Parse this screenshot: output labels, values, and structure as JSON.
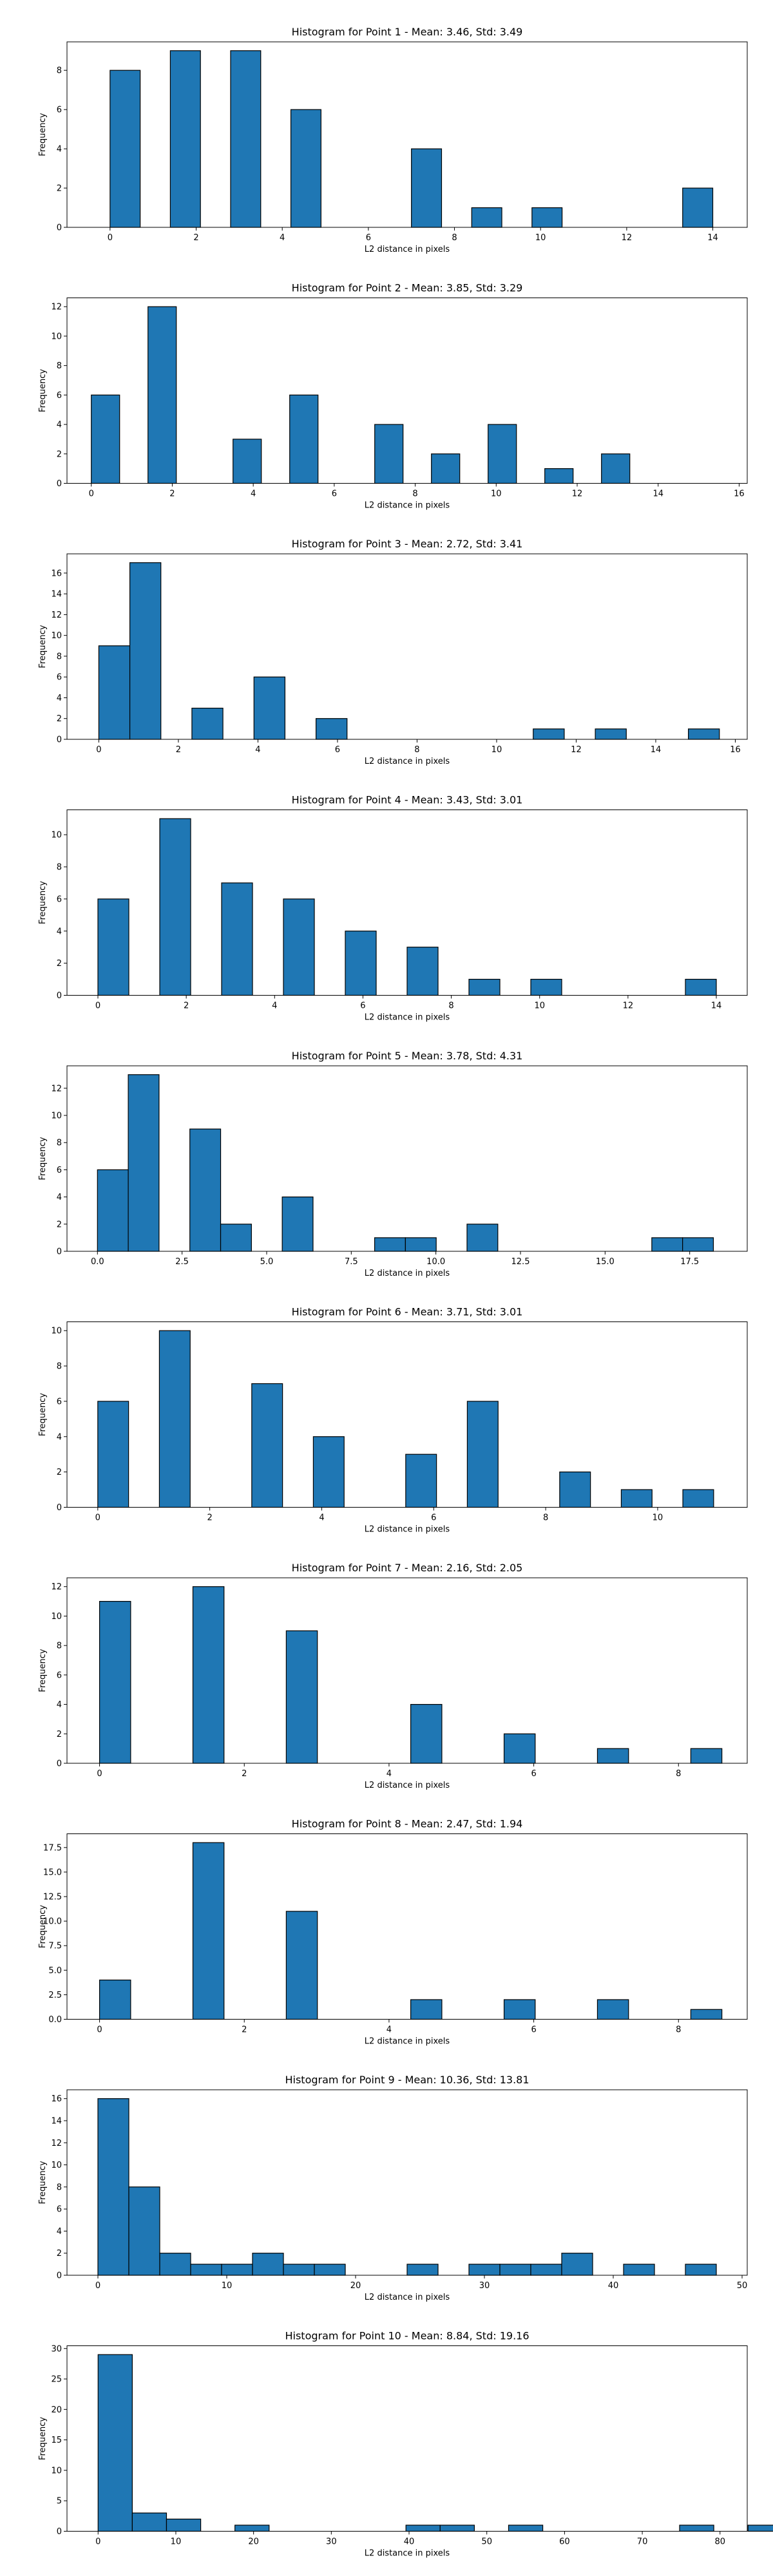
{
  "colors": {
    "bar_fill": "#1f77b4",
    "bar_edge": "#000000",
    "axes": "#000000",
    "background": "#ffffff"
  },
  "chart_data": [
    {
      "type": "bar",
      "title": "Histogram for Point 1 - Mean: 3.46, Std: 3.49",
      "xlabel": "L2 distance in pixels",
      "ylabel": "Frequency",
      "xlim": [
        -1.0,
        14.8
      ],
      "ylim": [
        0,
        9.45
      ],
      "xticks": [
        0,
        2,
        4,
        6,
        8,
        10,
        12,
        14
      ],
      "xtick_labels": [
        "0",
        "2",
        "4",
        "6",
        "8",
        "10",
        "12",
        "14"
      ],
      "yticks": [
        0,
        2,
        4,
        6,
        8
      ],
      "ytick_labels": [
        "0",
        "2",
        "4",
        "6",
        "8"
      ],
      "grid": false,
      "bins": [
        [
          0.0,
          0.7,
          8
        ],
        [
          1.4,
          2.1,
          9
        ],
        [
          2.8,
          3.5,
          9
        ],
        [
          4.2,
          4.9,
          6
        ],
        [
          7.0,
          7.7,
          4
        ],
        [
          8.4,
          9.1,
          1
        ],
        [
          9.8,
          10.5,
          1
        ],
        [
          13.3,
          14.0,
          2
        ]
      ]
    },
    {
      "type": "bar",
      "title": "Histogram for Point 2 - Mean: 3.85, Std: 3.29",
      "xlabel": "L2 distance in pixels",
      "ylabel": "Frequency",
      "xlim": [
        -0.6,
        16.2
      ],
      "ylim": [
        0,
        12.6
      ],
      "xticks": [
        0,
        2,
        4,
        6,
        8,
        10,
        12,
        14,
        16
      ],
      "xtick_labels": [
        "0",
        "2",
        "4",
        "6",
        "8",
        "10",
        "12",
        "14",
        "16"
      ],
      "yticks": [
        0,
        2,
        4,
        6,
        8,
        10,
        12
      ],
      "ytick_labels": [
        "0",
        "2",
        "4",
        "6",
        "8",
        "10",
        "12"
      ],
      "grid": false,
      "bins": [
        [
          0.0,
          0.7,
          6
        ],
        [
          1.4,
          2.1,
          12
        ],
        [
          3.5,
          4.2,
          3
        ],
        [
          4.9,
          5.6,
          6
        ],
        [
          7.0,
          7.7,
          4
        ],
        [
          8.4,
          9.1,
          2
        ],
        [
          9.8,
          10.5,
          4
        ],
        [
          11.2,
          11.9,
          1
        ],
        [
          12.6,
          13.3,
          2
        ]
      ]
    },
    {
      "type": "bar",
      "title": "Histogram for Point 3 - Mean: 2.72, Std: 3.41",
      "xlabel": "L2 distance in pixels",
      "ylabel": "Frequency",
      "xlim": [
        -0.8,
        16.3
      ],
      "ylim": [
        0,
        17.85
      ],
      "xticks": [
        0,
        2,
        4,
        6,
        8,
        10,
        12,
        14,
        16
      ],
      "xtick_labels": [
        "0",
        "2",
        "4",
        "6",
        "8",
        "10",
        "12",
        "14",
        "16"
      ],
      "yticks": [
        0,
        2,
        4,
        6,
        8,
        10,
        12,
        14,
        16
      ],
      "ytick_labels": [
        "0",
        "2",
        "4",
        "6",
        "8",
        "10",
        "12",
        "14",
        "16"
      ],
      "grid": false,
      "bins": [
        [
          0.0,
          0.78,
          9
        ],
        [
          0.78,
          1.56,
          17
        ],
        [
          2.34,
          3.12,
          3
        ],
        [
          3.9,
          4.68,
          6
        ],
        [
          5.46,
          6.24,
          2
        ],
        [
          10.92,
          11.7,
          1
        ],
        [
          12.48,
          13.26,
          1
        ],
        [
          14.82,
          15.6,
          1
        ]
      ]
    },
    {
      "type": "bar",
      "title": "Histogram for Point 4 - Mean: 3.43, Std: 3.01",
      "xlabel": "L2 distance in pixels",
      "ylabel": "Frequency",
      "xlim": [
        -0.7,
        14.7
      ],
      "ylim": [
        0,
        11.55
      ],
      "xticks": [
        0,
        2,
        4,
        6,
        8,
        10,
        12,
        14
      ],
      "xtick_labels": [
        "0",
        "2",
        "4",
        "6",
        "8",
        "10",
        "12",
        "14"
      ],
      "yticks": [
        0,
        2,
        4,
        6,
        8,
        10
      ],
      "ytick_labels": [
        "0",
        "2",
        "4",
        "6",
        "8",
        "10"
      ],
      "grid": false,
      "bins": [
        [
          0.0,
          0.7,
          6
        ],
        [
          1.4,
          2.1,
          11
        ],
        [
          2.8,
          3.5,
          7
        ],
        [
          4.2,
          4.9,
          6
        ],
        [
          5.6,
          6.3,
          4
        ],
        [
          7.0,
          7.7,
          3
        ],
        [
          8.4,
          9.1,
          1
        ],
        [
          9.8,
          10.5,
          1
        ],
        [
          13.3,
          14.0,
          1
        ]
      ]
    },
    {
      "type": "bar",
      "title": "Histogram for Point 5 - Mean: 3.78, Std: 4.31",
      "xlabel": "L2 distance in pixels",
      "ylabel": "Frequency",
      "xlim": [
        -0.9,
        19.2
      ],
      "ylim": [
        0,
        13.65
      ],
      "xticks": [
        0,
        2.5,
        5,
        7.5,
        10,
        12.5,
        15,
        17.5
      ],
      "xtick_labels": [
        "0.0",
        "2.5",
        "5.0",
        "7.5",
        "10.0",
        "12.5",
        "15.0",
        "17.5"
      ],
      "yticks": [
        0,
        2,
        4,
        6,
        8,
        10,
        12
      ],
      "ytick_labels": [
        "0",
        "2",
        "4",
        "6",
        "8",
        "10",
        "12"
      ],
      "grid": false,
      "bins": [
        [
          0.0,
          0.91,
          6
        ],
        [
          0.91,
          1.82,
          13
        ],
        [
          2.73,
          3.64,
          9
        ],
        [
          3.64,
          4.55,
          2
        ],
        [
          5.46,
          6.37,
          4
        ],
        [
          8.19,
          9.1,
          1
        ],
        [
          9.1,
          10.01,
          1
        ],
        [
          10.92,
          11.83,
          2
        ],
        [
          16.38,
          17.29,
          1
        ],
        [
          17.29,
          18.2,
          1
        ]
      ]
    },
    {
      "type": "bar",
      "title": "Histogram for Point 6 - Mean: 3.71, Std: 3.01",
      "xlabel": "L2 distance in pixels",
      "ylabel": "Frequency",
      "xlim": [
        -0.55,
        11.6
      ],
      "ylim": [
        0,
        10.5
      ],
      "xticks": [
        0,
        2,
        4,
        6,
        8,
        10
      ],
      "xtick_labels": [
        "0",
        "2",
        "4",
        "6",
        "8",
        "10"
      ],
      "yticks": [
        0,
        2,
        4,
        6,
        8,
        10
      ],
      "ytick_labels": [
        "0",
        "2",
        "4",
        "6",
        "8",
        "10"
      ],
      "grid": false,
      "bins": [
        [
          0.0,
          0.55,
          6
        ],
        [
          1.1,
          1.65,
          10
        ],
        [
          2.75,
          3.3,
          7
        ],
        [
          3.85,
          4.4,
          4
        ],
        [
          5.5,
          6.05,
          3
        ],
        [
          6.6,
          7.15,
          6
        ],
        [
          8.25,
          8.8,
          2
        ],
        [
          9.35,
          9.9,
          1
        ],
        [
          10.45,
          11.0,
          1
        ]
      ]
    },
    {
      "type": "bar",
      "title": "Histogram for Point 7 - Mean: 2.16, Std: 2.05",
      "xlabel": "L2 distance in pixels",
      "ylabel": "Frequency",
      "xlim": [
        -0.45,
        8.95
      ],
      "ylim": [
        0,
        12.6
      ],
      "xticks": [
        0,
        2,
        4,
        6,
        8
      ],
      "xtick_labels": [
        "0",
        "2",
        "4",
        "6",
        "8"
      ],
      "yticks": [
        0,
        2,
        4,
        6,
        8,
        10,
        12
      ],
      "ytick_labels": [
        "0",
        "2",
        "4",
        "6",
        "8",
        "10",
        "12"
      ],
      "grid": false,
      "bins": [
        [
          0.0,
          0.43,
          11
        ],
        [
          1.29,
          1.72,
          12
        ],
        [
          2.58,
          3.01,
          9
        ],
        [
          4.3,
          4.73,
          4
        ],
        [
          5.59,
          6.02,
          2
        ],
        [
          6.88,
          7.31,
          1
        ],
        [
          8.17,
          8.6,
          1
        ]
      ]
    },
    {
      "type": "bar",
      "title": "Histogram for Point 8 - Mean: 2.47, Std: 1.94",
      "xlabel": "L2 distance in pixels",
      "ylabel": "Frequency",
      "xlim": [
        -0.45,
        8.95
      ],
      "ylim": [
        0,
        18.9
      ],
      "xticks": [
        0,
        2,
        4,
        6,
        8
      ],
      "xtick_labels": [
        "0",
        "2",
        "4",
        "6",
        "8"
      ],
      "yticks": [
        0,
        2.5,
        5,
        7.5,
        10,
        12.5,
        15,
        17.5
      ],
      "ytick_labels": [
        "0.0",
        "2.5",
        "5.0",
        "7.5",
        "10.0",
        "12.5",
        "15.0",
        "17.5"
      ],
      "grid": false,
      "bins": [
        [
          0.0,
          0.43,
          4
        ],
        [
          1.29,
          1.72,
          18
        ],
        [
          2.58,
          3.01,
          11
        ],
        [
          4.3,
          4.73,
          2
        ],
        [
          5.59,
          6.02,
          2
        ],
        [
          6.88,
          7.31,
          2
        ],
        [
          8.17,
          8.6,
          1
        ]
      ]
    },
    {
      "type": "bar",
      "title": "Histogram for Point 9 - Mean: 10.36, Std: 13.81",
      "xlabel": "L2 distance in pixels",
      "ylabel": "Frequency",
      "xlim": [
        -2.4,
        50.4
      ],
      "ylim": [
        0,
        16.8
      ],
      "xticks": [
        0,
        10,
        20,
        30,
        40,
        50
      ],
      "xtick_labels": [
        "0",
        "10",
        "20",
        "30",
        "40",
        "50"
      ],
      "yticks": [
        0,
        2,
        4,
        6,
        8,
        10,
        12,
        14,
        16
      ],
      "ytick_labels": [
        "0",
        "2",
        "4",
        "6",
        "8",
        "10",
        "12",
        "14",
        "16"
      ],
      "grid": false,
      "bins": [
        [
          0,
          2.4,
          16
        ],
        [
          2.4,
          4.8,
          8
        ],
        [
          4.8,
          7.2,
          2
        ],
        [
          7.2,
          9.6,
          1
        ],
        [
          9.6,
          12.0,
          1
        ],
        [
          12.0,
          14.4,
          2
        ],
        [
          14.4,
          16.8,
          1
        ],
        [
          16.8,
          19.2,
          1
        ],
        [
          24.0,
          26.4,
          1
        ],
        [
          28.8,
          31.2,
          1
        ],
        [
          31.2,
          33.6,
          1
        ],
        [
          33.6,
          36.0,
          1
        ],
        [
          36.0,
          38.4,
          2
        ],
        [
          40.8,
          43.2,
          1
        ],
        [
          45.6,
          48.0,
          1
        ]
      ]
    },
    {
      "type": "bar",
      "title": "Histogram for Point 10 - Mean: 8.84, Std: 19.16",
      "xlabel": "L2 distance in pixels",
      "ylabel": "Frequency",
      "xlim": [
        -4.0,
        83.5
      ],
      "ylim": [
        0,
        30.45
      ],
      "xticks": [
        0,
        10,
        20,
        30,
        40,
        50,
        60,
        70,
        80
      ],
      "xtick_labels": [
        "0",
        "10",
        "20",
        "30",
        "40",
        "50",
        "60",
        "70",
        "80"
      ],
      "yticks": [
        0,
        5,
        10,
        15,
        20,
        25,
        30
      ],
      "ytick_labels": [
        "0",
        "5",
        "10",
        "15",
        "20",
        "25",
        "30"
      ],
      "grid": false,
      "bins": [
        [
          0,
          4.4,
          29
        ],
        [
          4.4,
          8.8,
          3
        ],
        [
          8.8,
          13.2,
          2
        ],
        [
          17.6,
          22.0,
          1
        ],
        [
          39.6,
          44.0,
          1
        ],
        [
          44.0,
          48.4,
          1
        ],
        [
          52.8,
          57.2,
          1
        ],
        [
          74.8,
          79.2,
          1
        ],
        [
          83.6,
          88.0,
          1
        ]
      ]
    }
  ]
}
